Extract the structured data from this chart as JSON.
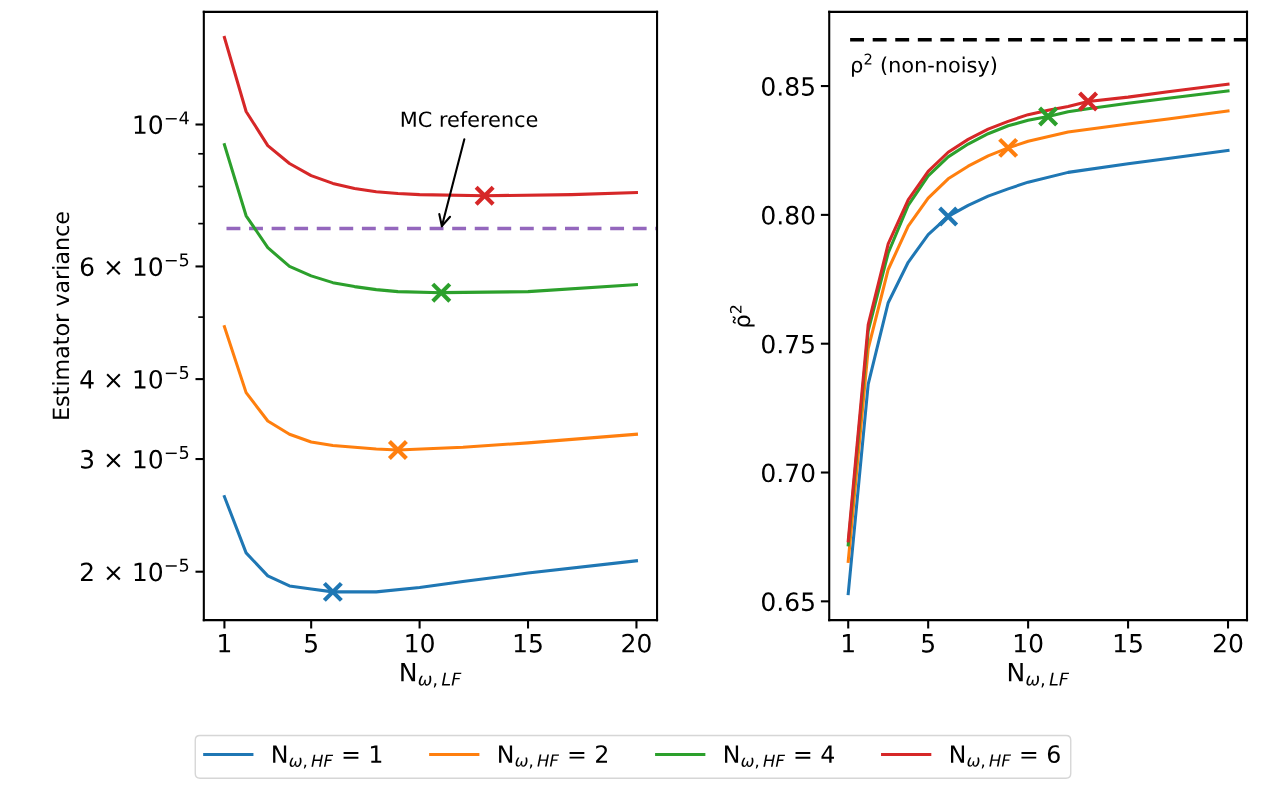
{
  "chart_data": [
    {
      "type": "line",
      "xlabel": "N$_{ω,LF}$",
      "ylabel": "Estimator variance",
      "log": "y",
      "xlim": [
        0.05,
        20.95
      ],
      "xticks": [
        1,
        5,
        10,
        15,
        20
      ],
      "ylim": [
        1.68e-05,
        0.00015
      ],
      "yticks": [
        {
          "value": 2e-05,
          "label": "2 × 10$^{−5}$"
        },
        {
          "value": 3e-05,
          "label": "3 × 10$^{−5}$"
        },
        {
          "value": 4e-05,
          "label": "4 × 10$^{−5}$"
        },
        {
          "value": 5e-05,
          "label": null
        },
        {
          "value": 6e-05,
          "label": "6 × 10$^{−5}$"
        },
        {
          "value": 7e-05,
          "label": null
        },
        {
          "value": 8e-05,
          "label": null
        },
        {
          "value": 9e-05,
          "label": null
        },
        {
          "value": 0.0001,
          "label": "10$^{−4}$"
        }
      ],
      "grid": false,
      "legend": "bottom",
      "line_style": "solid",
      "series": [
        {
          "name": "N$_{ω,HF}$ = 1",
          "color": "#1f77b4",
          "x": [
            1,
            2,
            3,
            4,
            5,
            6,
            7,
            8,
            10,
            12,
            15,
            20
          ],
          "values": [
            2.62e-05,
            2.14e-05,
            1.97e-05,
            1.9e-05,
            1.88e-05,
            1.86e-05,
            1.86e-05,
            1.86e-05,
            1.89e-05,
            1.93e-05,
            1.99e-05,
            2.08e-05
          ]
        },
        {
          "name": "N$_{ω,HF}$ = 2",
          "color": "#ff7f0e",
          "x": [
            1,
            2,
            3,
            4,
            5,
            6,
            7,
            8,
            9,
            12,
            15,
            20
          ],
          "values": [
            4.83e-05,
            3.81e-05,
            3.44e-05,
            3.28e-05,
            3.19e-05,
            3.15e-05,
            3.13e-05,
            3.11e-05,
            3.1e-05,
            3.13e-05,
            3.18e-05,
            3.28e-05
          ]
        },
        {
          "name": "N$_{ω,HF}$ = 4",
          "color": "#2ca02c",
          "x": [
            1,
            2,
            3,
            4,
            5,
            6,
            7,
            8,
            9,
            11,
            15,
            20
          ],
          "values": [
            9.3e-05,
            7.2e-05,
            6.42e-05,
            6e-05,
            5.8e-05,
            5.66e-05,
            5.58e-05,
            5.52e-05,
            5.48e-05,
            5.46e-05,
            5.48e-05,
            5.62e-05
          ]
        },
        {
          "name": "N$_{ω,HF}$ = 6",
          "color": "#d62728",
          "x": [
            1,
            2,
            3,
            4,
            5,
            6,
            7,
            8,
            9,
            10,
            13,
            17,
            20
          ],
          "values": [
            0.0001368,
            0.0001048,
            9.27e-05,
            8.69e-05,
            8.32e-05,
            8.09e-05,
            7.94e-05,
            7.85e-05,
            7.8e-05,
            7.77e-05,
            7.74e-05,
            7.77e-05,
            7.83e-05
          ]
        },
        {
          "type": "scatter",
          "marker": "cross",
          "color": "#1f77b4",
          "x": [
            6
          ],
          "values": [
            1.86e-05
          ]
        },
        {
          "type": "scatter",
          "marker": "cross",
          "color": "#ff7f0e",
          "x": [
            9
          ],
          "values": [
            3.1e-05
          ]
        },
        {
          "type": "scatter",
          "marker": "cross",
          "color": "#2ca02c",
          "x": [
            11
          ],
          "values": [
            5.46e-05
          ]
        },
        {
          "type": "scatter",
          "marker": "cross",
          "color": "#d62728",
          "x": [
            13
          ],
          "values": [
            7.74e-05
          ]
        }
      ],
      "ref_lines": [
        {
          "axis": "y",
          "value": 6.88e-05,
          "color": "#9467bd",
          "line_style": "dashed"
        }
      ],
      "annotations": [
        {
          "text": "MC reference",
          "x": 11,
          "y": 6.88e-05
        }
      ]
    },
    {
      "type": "line",
      "xlabel": "N$_{ω,LF}$",
      "ylabel": "ρ̃$^{2}$",
      "xlim": [
        0.05,
        20.95
      ],
      "xticks": [
        1,
        5,
        10,
        15,
        20
      ],
      "ylim": [
        0.6427,
        0.8788
      ],
      "yticks": [
        {
          "value": 0.65,
          "label": "0.65"
        },
        {
          "value": 0.7,
          "label": "0.70"
        },
        {
          "value": 0.75,
          "label": "0.75"
        },
        {
          "value": 0.8,
          "label": "0.80"
        },
        {
          "value": 0.85,
          "label": "0.85"
        }
      ],
      "grid": false,
      "line_style": "solid",
      "series": [
        {
          "color": "#1f77b4",
          "x": [
            1,
            2,
            3,
            4,
            5,
            6,
            7,
            8,
            9,
            10,
            12,
            15,
            17,
            20
          ],
          "values": [
            0.653,
            0.7343,
            0.7659,
            0.7816,
            0.7923,
            0.7994,
            0.8037,
            0.8073,
            0.8101,
            0.8127,
            0.8165,
            0.8198,
            0.8219,
            0.825
          ]
        },
        {
          "color": "#ff7f0e",
          "x": [
            1,
            2,
            3,
            4,
            5,
            6,
            7,
            8,
            9,
            10,
            12,
            15,
            17,
            20
          ],
          "values": [
            0.6655,
            0.7481,
            0.7788,
            0.7956,
            0.8065,
            0.814,
            0.8189,
            0.8229,
            0.826,
            0.8286,
            0.8322,
            0.8353,
            0.8372,
            0.8403
          ]
        },
        {
          "color": "#2ca02c",
          "x": [
            1,
            2,
            3,
            4,
            5,
            6,
            7,
            8,
            9,
            10,
            11,
            12,
            13,
            15,
            17,
            20
          ],
          "values": [
            0.6719,
            0.755,
            0.7852,
            0.8037,
            0.8151,
            0.8225,
            0.8275,
            0.8315,
            0.8346,
            0.8367,
            0.8382,
            0.84,
            0.8412,
            0.8433,
            0.8453,
            0.8481
          ]
        },
        {
          "color": "#d62728",
          "x": [
            1,
            2,
            3,
            4,
            5,
            6,
            7,
            8,
            9,
            10,
            11,
            12,
            13,
            15,
            17,
            20
          ],
          "values": [
            0.6735,
            0.7574,
            0.7887,
            0.8058,
            0.8169,
            0.8243,
            0.8293,
            0.8333,
            0.8363,
            0.8389,
            0.8406,
            0.8421,
            0.844,
            0.8457,
            0.8478,
            0.8507
          ]
        },
        {
          "type": "scatter",
          "marker": "cross",
          "color": "#1f77b4",
          "x": [
            6
          ],
          "values": [
            0.7994
          ]
        },
        {
          "type": "scatter",
          "marker": "cross",
          "color": "#ff7f0e",
          "x": [
            9
          ],
          "values": [
            0.826
          ]
        },
        {
          "type": "scatter",
          "marker": "cross",
          "color": "#2ca02c",
          "x": [
            11
          ],
          "values": [
            0.8382
          ]
        },
        {
          "type": "scatter",
          "marker": "cross",
          "color": "#d62728",
          "x": [
            13
          ],
          "values": [
            0.844
          ]
        }
      ],
      "ref_lines": [
        {
          "axis": "y",
          "value": 0.868,
          "color": "#000000",
          "line_style": "dashed",
          "label": "ρ$^{2}$ (non-noisy)"
        }
      ]
    }
  ]
}
